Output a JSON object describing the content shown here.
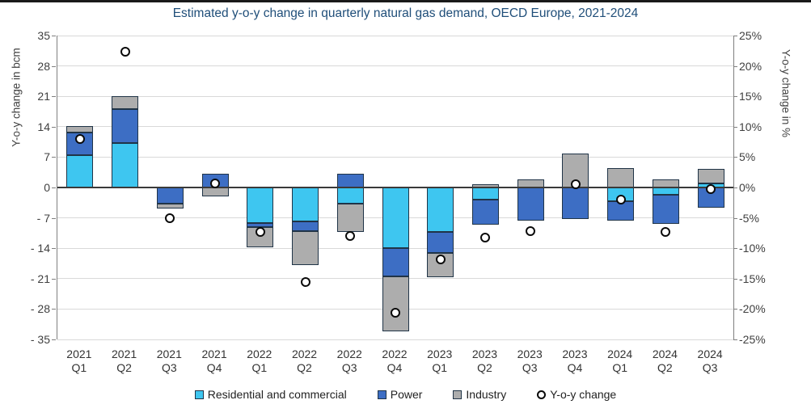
{
  "chart_data": {
    "type": "bar",
    "subtype": "stacked-bars-with-scatter-overlay",
    "title": "Estimated y-o-y change in quarterly natural gas demand, OECD Europe, 2021-2024",
    "title_color": "#1F4E79",
    "ylabel_left": "Y-o-y change in bcm",
    "ylabel_right": "Y-o-y change in %",
    "ylim_left": [
      -35,
      35
    ],
    "ylim_right_pct": [
      -25,
      25
    ],
    "left_tick_values": [
      35,
      28,
      21,
      14,
      7,
      0,
      -7,
      -14,
      -21,
      -28,
      -35
    ],
    "right_tick_labels": [
      "25%",
      "20%",
      "15%",
      "10%",
      "5%",
      "0%",
      "-5%",
      "-10%",
      "-15%",
      "-20%",
      "-25%"
    ],
    "grid": true,
    "gridline_color": "#d9d9d9",
    "categories": [
      "2021 Q1",
      "2021 Q2",
      "2021 Q3",
      "2021 Q4",
      "2022 Q1",
      "2022 Q2",
      "2022 Q3",
      "2022 Q4",
      "2023 Q1",
      "2023 Q2",
      "2023 Q3",
      "2023 Q4",
      "2024 Q1",
      "2024 Q2",
      "2024 Q3"
    ],
    "series": [
      {
        "name": "Residential and commercial",
        "color": "#3ec6f0",
        "values": [
          7.5,
          10.2,
          0,
          0,
          -8.1,
          -7.9,
          -3.7,
          -13.9,
          -10.2,
          -2.7,
          0,
          0,
          -3.2,
          -1.6,
          1.0
        ]
      },
      {
        "name": "Power",
        "color": "#3d6ec4",
        "values": [
          5.2,
          7.9,
          -3.8,
          3.2,
          -1.0,
          -2.1,
          3.2,
          -6.5,
          -4.9,
          -5.8,
          -7.7,
          -7.3,
          -4.5,
          -6.7,
          -4.6
        ]
      },
      {
        "name": "Industry",
        "color": "#adadad",
        "values": [
          1.5,
          2.9,
          -1.0,
          -2.1,
          -4.7,
          -7.9,
          -6.5,
          -12.7,
          -5.5,
          0.7,
          1.9,
          7.9,
          4.4,
          1.9,
          3.3
        ]
      }
    ],
    "scatter": {
      "name": "Y-o-y change",
      "marker": "open-circle",
      "values_pct": [
        8.0,
        22.4,
        -5.0,
        0.7,
        -7.3,
        -15.6,
        -8.0,
        -20.6,
        -11.9,
        -8.2,
        -7.2,
        0.5,
        -2.0,
        -7.3,
        -0.3
      ]
    },
    "legend_position": "bottom"
  }
}
